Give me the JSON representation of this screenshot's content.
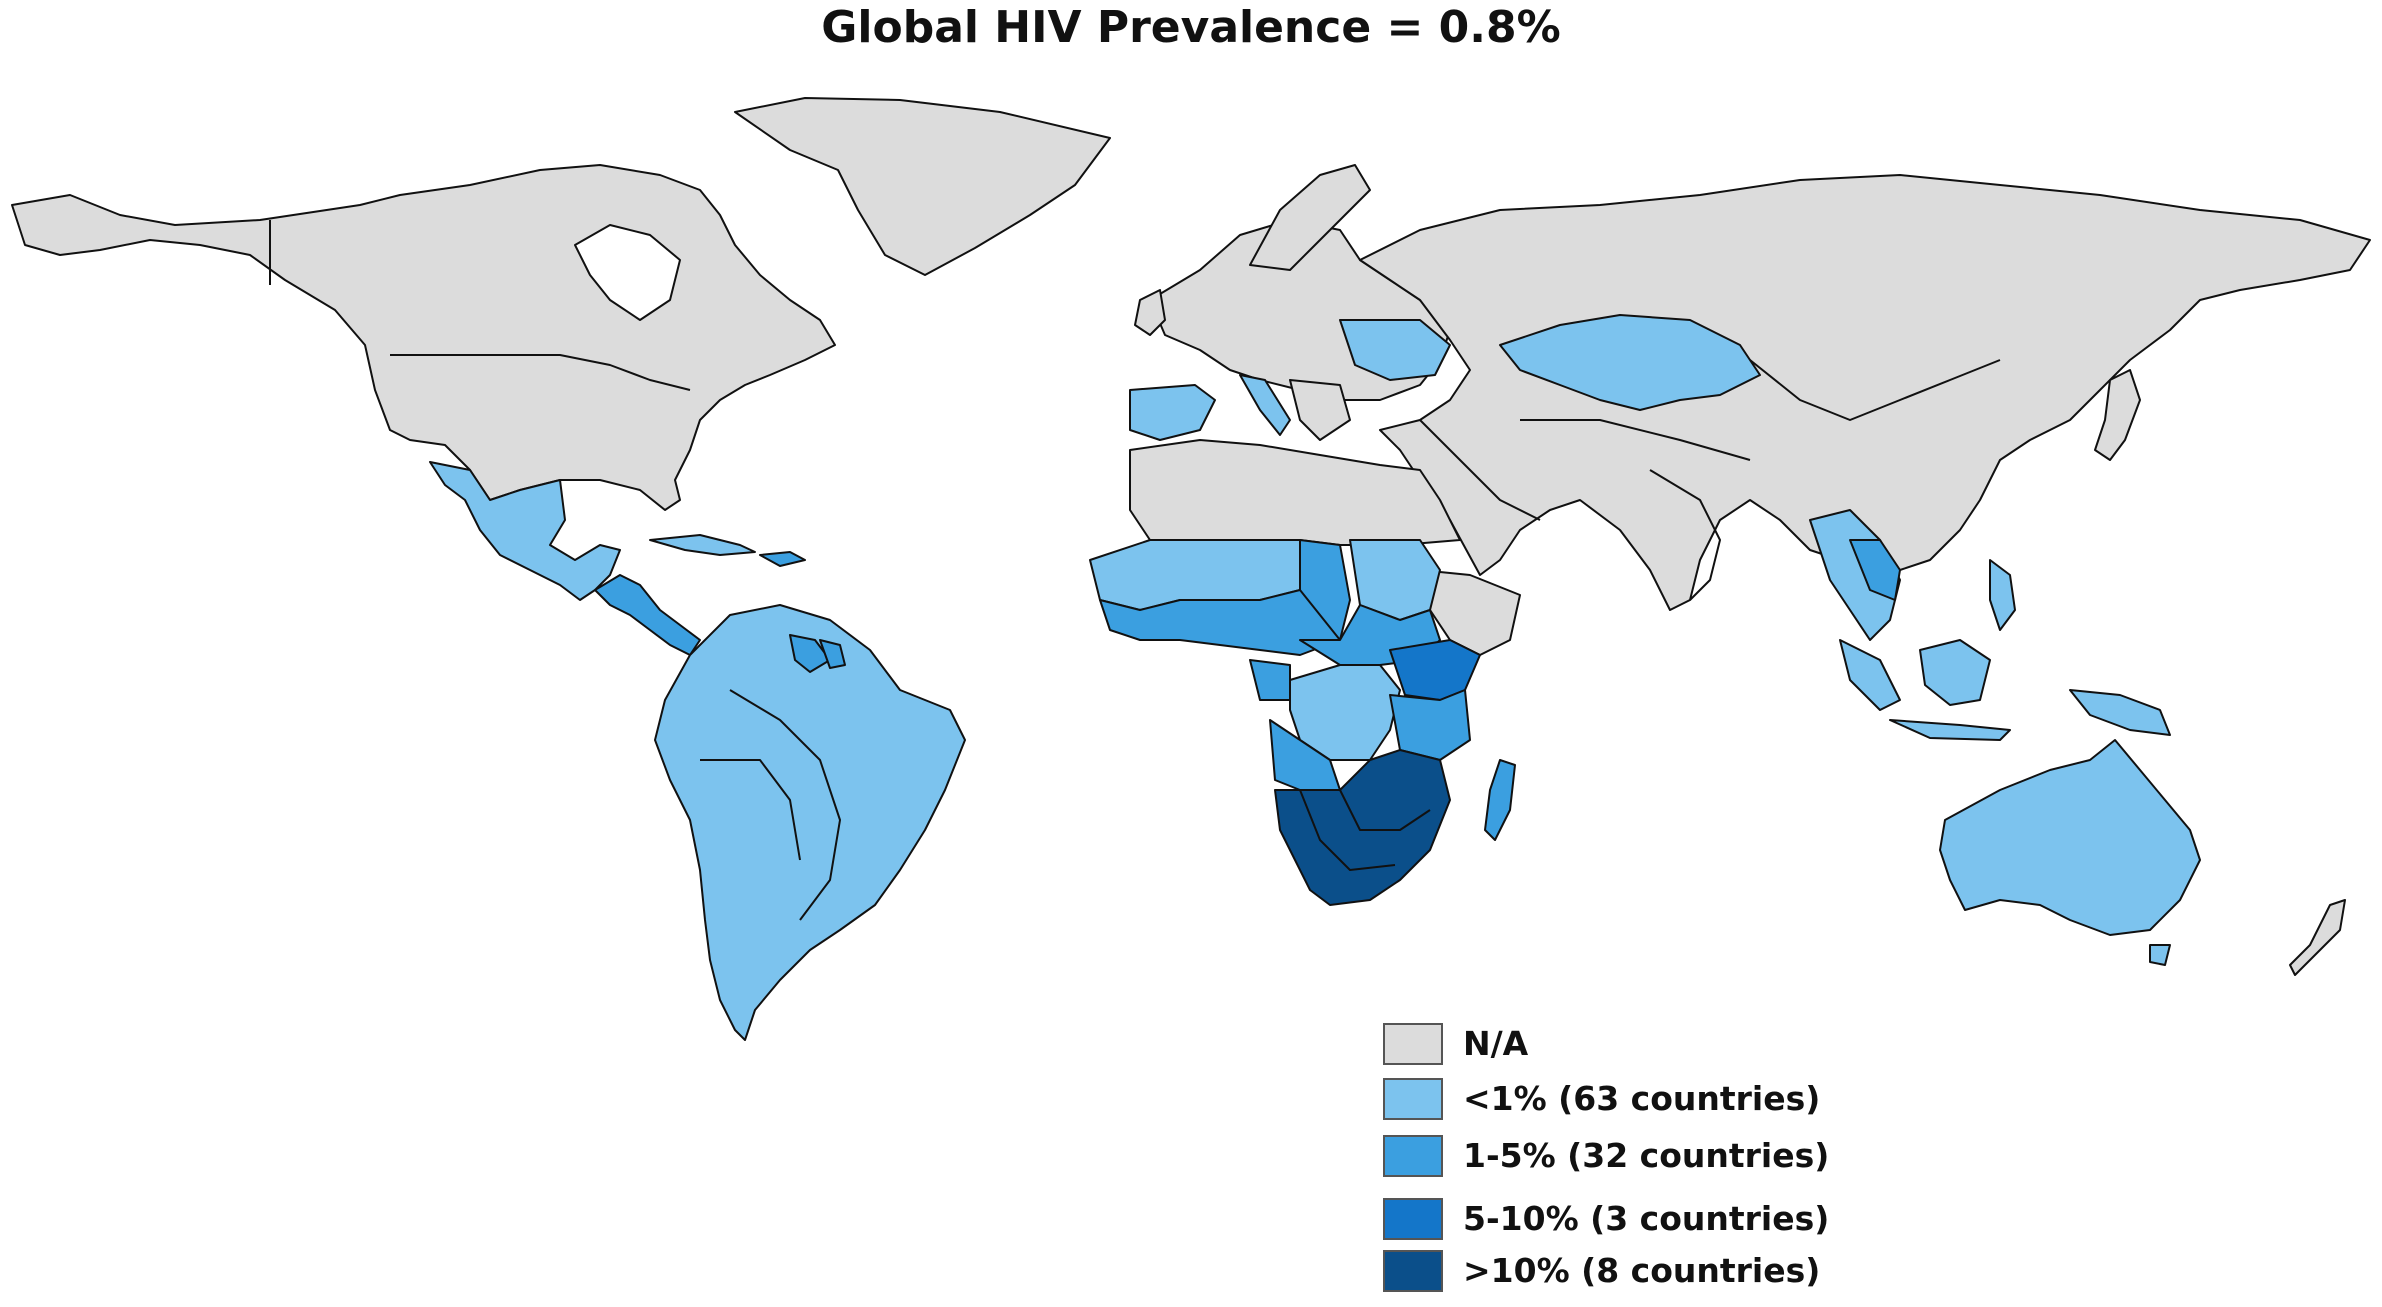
{
  "title": "Global HIV Prevalence = 0.8%",
  "colors": {
    "na": "#dcdcdc",
    "lt1": "#7cc3ee",
    "1to5": "#3b9fe0",
    "5to10": "#1476c9",
    "gt10": "#0b4f8a",
    "border": "#111111",
    "ocean": "#ffffff"
  },
  "legend": [
    {
      "label": "N/A",
      "color": "#dcdcdc"
    },
    {
      "label": "<1% (63 countries)",
      "color": "#7cc3ee"
    },
    {
      "label": "1-5% (32 countries)",
      "color": "#3b9fe0"
    },
    {
      "label": "5-10% (3 countries)",
      "color": "#1476c9"
    },
    {
      "label": ">10% (8 countries)",
      "color": "#0b4f8a"
    }
  ]
}
